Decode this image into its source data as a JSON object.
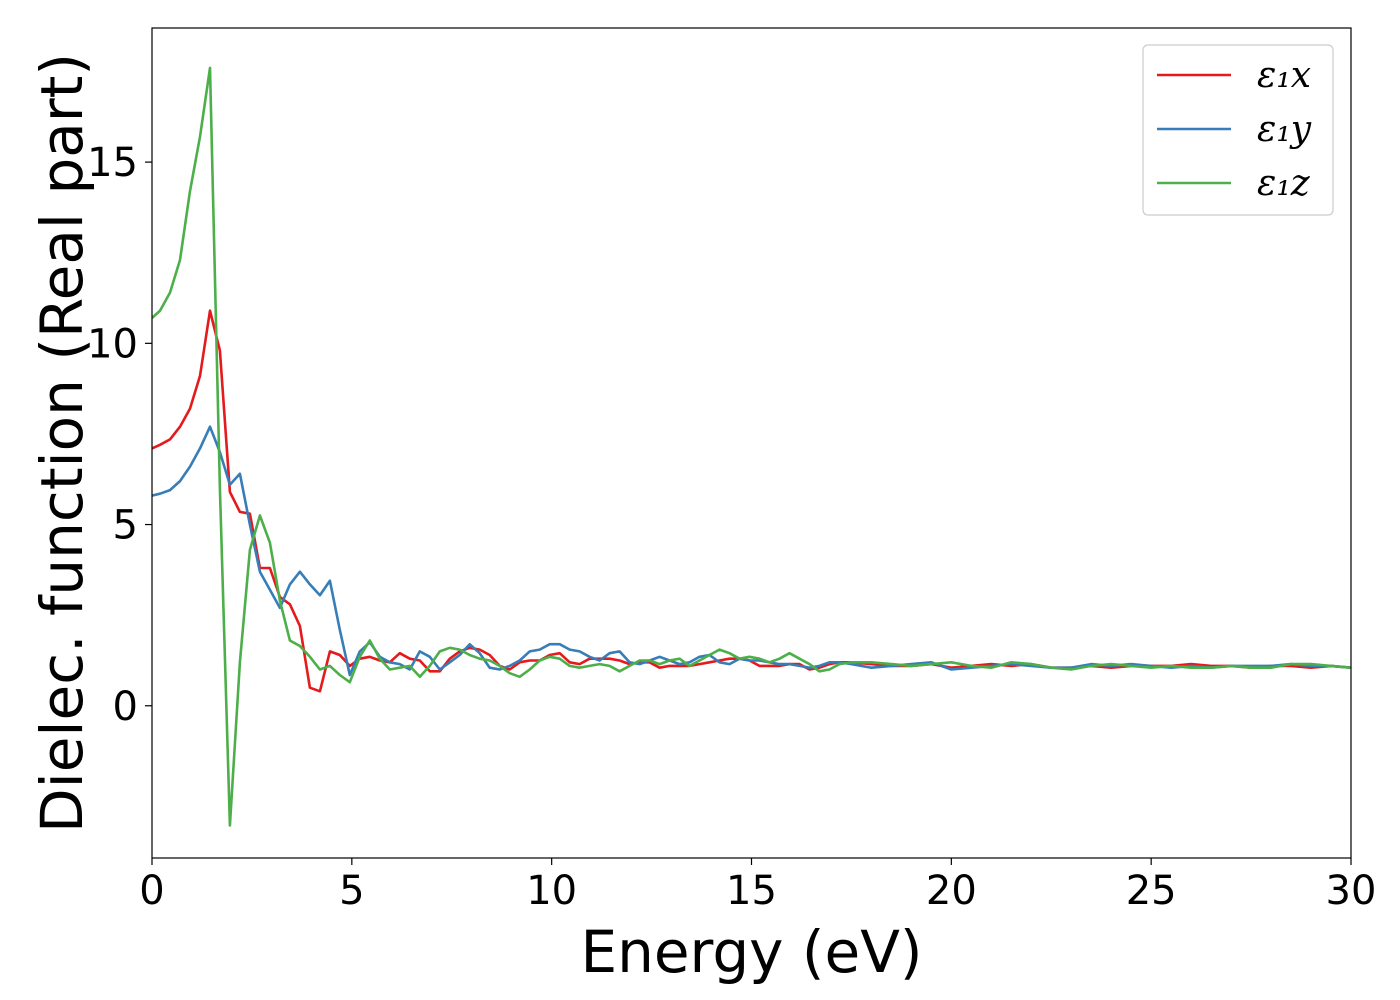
{
  "chart_data": {
    "type": "line",
    "xlabel": "Energy (eV)",
    "ylabel": "Dielec. function (Real part)",
    "xlim": [
      0,
      30
    ],
    "ylim": [
      -4.2,
      18.7
    ],
    "xticks": [
      0,
      5,
      10,
      15,
      20,
      25,
      30
    ],
    "yticks": [
      0,
      5,
      10,
      15
    ],
    "grid": false,
    "legend_position": "top-right",
    "x": [
      0,
      0.2,
      0.45,
      0.7,
      0.95,
      1.2,
      1.45,
      1.7,
      1.95,
      2.2,
      2.45,
      2.7,
      2.95,
      3.2,
      3.45,
      3.7,
      3.95,
      4.2,
      4.45,
      4.7,
      4.95,
      5.2,
      5.45,
      5.7,
      5.95,
      6.2,
      6.45,
      6.7,
      6.95,
      7.2,
      7.45,
      7.7,
      7.95,
      8.2,
      8.45,
      8.7,
      8.95,
      9.2,
      9.45,
      9.7,
      9.95,
      10.2,
      10.45,
      10.7,
      10.95,
      11.2,
      11.45,
      11.7,
      11.95,
      12.2,
      12.45,
      12.7,
      12.95,
      13.2,
      13.45,
      13.7,
      13.95,
      14.2,
      14.45,
      14.7,
      14.95,
      15.2,
      15.45,
      15.7,
      15.95,
      16.2,
      16.45,
      16.7,
      16.95,
      17.2,
      17.5,
      18,
      18.5,
      19,
      19.5,
      20,
      20.5,
      21,
      21.5,
      22,
      22.5,
      23,
      23.5,
      24,
      24.5,
      25,
      25.5,
      26,
      26.5,
      27,
      27.5,
      28,
      28.5,
      29,
      29.5,
      30
    ],
    "series": [
      {
        "name": "ε₁x",
        "color": "#e41a1c",
        "values": [
          7.1,
          7.2,
          7.35,
          7.7,
          8.2,
          9.1,
          10.9,
          9.8,
          5.9,
          5.35,
          5.3,
          3.8,
          3.8,
          3.0,
          2.8,
          2.2,
          0.5,
          0.4,
          1.5,
          1.4,
          1.1,
          1.3,
          1.35,
          1.25,
          1.2,
          1.45,
          1.3,
          1.25,
          0.95,
          0.95,
          1.3,
          1.5,
          1.6,
          1.55,
          1.4,
          1.1,
          1.0,
          1.2,
          1.25,
          1.25,
          1.4,
          1.45,
          1.2,
          1.15,
          1.3,
          1.3,
          1.3,
          1.25,
          1.15,
          1.2,
          1.2,
          1.05,
          1.1,
          1.1,
          1.1,
          1.15,
          1.2,
          1.25,
          1.3,
          1.3,
          1.25,
          1.1,
          1.1,
          1.1,
          1.15,
          1.15,
          1.0,
          1.05,
          1.15,
          1.2,
          1.2,
          1.15,
          1.1,
          1.1,
          1.15,
          1.05,
          1.1,
          1.15,
          1.1,
          1.15,
          1.05,
          1.05,
          1.1,
          1.05,
          1.1,
          1.1,
          1.1,
          1.15,
          1.1,
          1.1,
          1.05,
          1.1,
          1.1,
          1.05,
          1.1,
          1.05
        ]
      },
      {
        "name": "ε₁y",
        "color": "#377eb8",
        "values": [
          5.8,
          5.85,
          5.95,
          6.2,
          6.6,
          7.1,
          7.7,
          7.0,
          6.1,
          6.4,
          5.0,
          3.7,
          3.2,
          2.7,
          3.35,
          3.7,
          3.35,
          3.05,
          3.45,
          2.1,
          0.85,
          1.5,
          1.75,
          1.35,
          1.2,
          1.15,
          1.0,
          1.5,
          1.35,
          1.0,
          1.2,
          1.4,
          1.7,
          1.45,
          1.05,
          1.0,
          1.1,
          1.25,
          1.5,
          1.55,
          1.7,
          1.7,
          1.55,
          1.5,
          1.35,
          1.25,
          1.45,
          1.5,
          1.2,
          1.15,
          1.25,
          1.35,
          1.25,
          1.15,
          1.2,
          1.35,
          1.4,
          1.2,
          1.15,
          1.3,
          1.25,
          1.25,
          1.2,
          1.15,
          1.15,
          1.1,
          1.05,
          1.1,
          1.2,
          1.2,
          1.15,
          1.05,
          1.1,
          1.15,
          1.2,
          1.0,
          1.05,
          1.1,
          1.15,
          1.1,
          1.05,
          1.05,
          1.15,
          1.1,
          1.15,
          1.1,
          1.05,
          1.1,
          1.05,
          1.1,
          1.1,
          1.1,
          1.15,
          1.1,
          1.1,
          1.05
        ]
      },
      {
        "name": "ε₁z",
        "color": "#4daf4a",
        "values": [
          10.7,
          10.9,
          11.4,
          12.3,
          14.2,
          15.7,
          17.6,
          6.0,
          -3.3,
          1.2,
          4.3,
          5.25,
          4.5,
          2.9,
          1.8,
          1.65,
          1.35,
          1.0,
          1.1,
          0.85,
          0.65,
          1.35,
          1.8,
          1.3,
          1.0,
          1.05,
          1.1,
          0.8,
          1.1,
          1.5,
          1.6,
          1.55,
          1.4,
          1.3,
          1.25,
          1.1,
          0.9,
          0.8,
          1.0,
          1.25,
          1.35,
          1.3,
          1.1,
          1.05,
          1.1,
          1.15,
          1.1,
          0.95,
          1.1,
          1.25,
          1.25,
          1.15,
          1.25,
          1.3,
          1.1,
          1.25,
          1.4,
          1.55,
          1.45,
          1.3,
          1.35,
          1.3,
          1.2,
          1.3,
          1.45,
          1.3,
          1.15,
          0.95,
          1.0,
          1.15,
          1.2,
          1.2,
          1.15,
          1.1,
          1.15,
          1.2,
          1.1,
          1.05,
          1.2,
          1.15,
          1.05,
          1.0,
          1.1,
          1.15,
          1.1,
          1.05,
          1.1,
          1.05,
          1.05,
          1.1,
          1.05,
          1.05,
          1.15,
          1.15,
          1.1,
          1.05
        ]
      }
    ]
  }
}
